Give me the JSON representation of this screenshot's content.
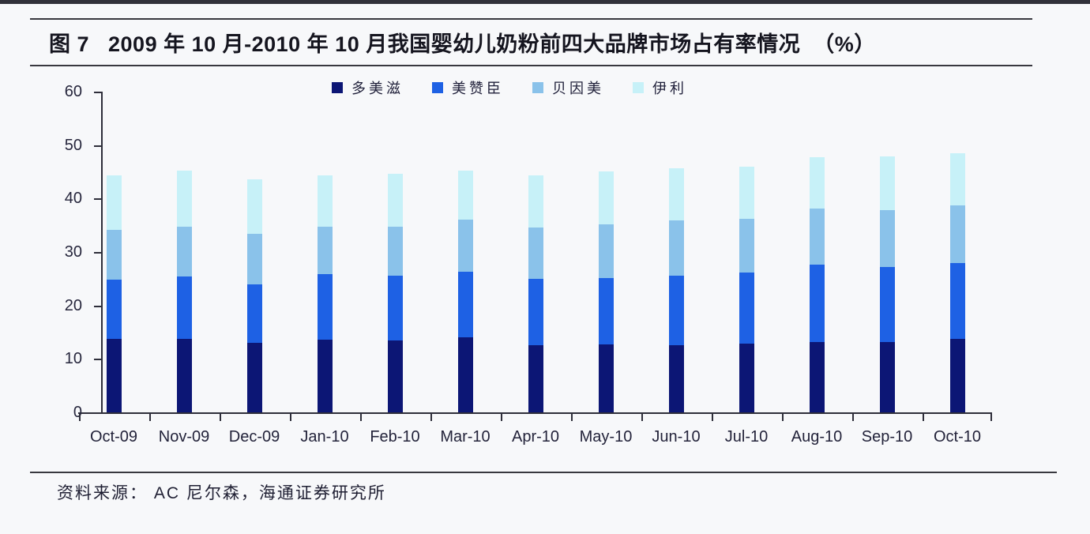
{
  "page": {
    "title": "图 7   2009 年 10 月-2010 年 10 月我国婴幼儿奶粉前四大品牌市场占有率情况  （%）",
    "source": "资料来源： AC 尼尔森，海通证券研究所"
  },
  "chart_data": {
    "type": "bar",
    "stacked": true,
    "title": "2009年10月-2010年10月我国婴幼儿奶粉前四大品牌市场占有率情况（%）",
    "categories": [
      "Oct-09",
      "Nov-09",
      "Dec-09",
      "Jan-10",
      "Feb-10",
      "Mar-10",
      "Apr-10",
      "May-10",
      "Jun-10",
      "Jul-10",
      "Aug-10",
      "Sep-10",
      "Oct-10"
    ],
    "series": [
      {
        "name": "多美滋",
        "color": "#0c1675",
        "values": [
          13.8,
          13.8,
          13.0,
          13.6,
          13.4,
          14.1,
          12.5,
          12.7,
          12.6,
          12.8,
          13.1,
          13.2,
          13.8
        ]
      },
      {
        "name": "美赞臣",
        "color": "#1e61e4",
        "values": [
          11.0,
          11.6,
          11.0,
          12.2,
          12.1,
          12.2,
          12.5,
          12.4,
          12.9,
          13.4,
          14.5,
          14.0,
          14.1
        ]
      },
      {
        "name": "贝因美",
        "color": "#8ac2ea",
        "values": [
          9.3,
          9.3,
          9.4,
          8.9,
          9.2,
          9.8,
          9.6,
          10.1,
          10.4,
          10.0,
          10.6,
          10.7,
          10.8
        ]
      },
      {
        "name": "伊利",
        "color": "#c7f1f8",
        "values": [
          10.3,
          10.5,
          10.2,
          9.7,
          9.9,
          9.1,
          9.7,
          9.9,
          9.8,
          9.7,
          9.5,
          10.0,
          9.8
        ]
      }
    ],
    "totals": [
      44.4,
      45.2,
      43.6,
      44.4,
      44.6,
      45.2,
      44.3,
      45.1,
      45.7,
      45.9,
      47.7,
      47.9,
      48.5
    ],
    "xlabel": "",
    "ylabel": "",
    "ylim": [
      0,
      60
    ],
    "yticks": [
      0,
      10,
      20,
      30,
      40,
      50,
      60
    ],
    "grid": false,
    "legend_position": "top"
  }
}
